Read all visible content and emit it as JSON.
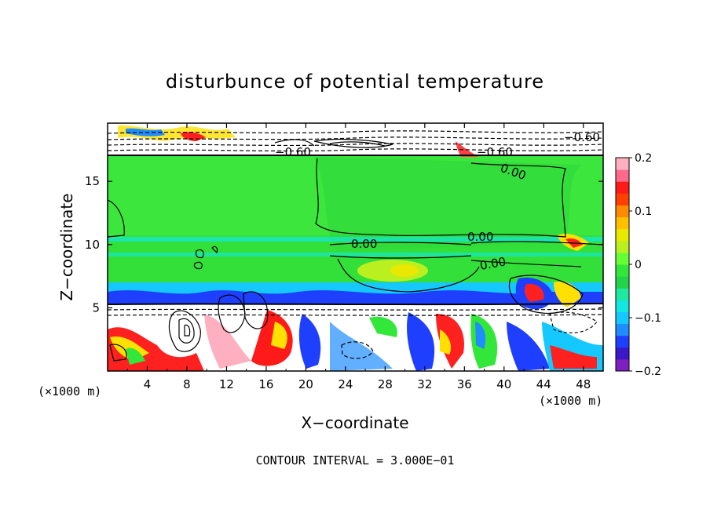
{
  "chart_data": {
    "type": "heatmap",
    "title": "disturbunce of potential temperature",
    "xlabel": "X−coordinate",
    "ylabel": "Z−coordinate",
    "x_unit_left": "(×1000 m)",
    "x_unit_right": "(×1000 m)",
    "xlim": [
      0,
      50
    ],
    "ylim": [
      0,
      19.6
    ],
    "x_ticks": [
      "4",
      "8",
      "12",
      "16",
      "20",
      "24",
      "28",
      "32",
      "36",
      "40",
      "44",
      "48"
    ],
    "y_ticks": [
      "5",
      "10",
      "15"
    ],
    "colorbar": {
      "ticks": [
        "0.2",
        "0.1",
        "0",
        "−0.1",
        "−0.2"
      ],
      "range": [
        -0.2,
        0.2
      ],
      "colors": [
        "#7f1fbf",
        "#3b18c8",
        "#1f3fff",
        "#1f8cff",
        "#15c8ff",
        "#11e8e0",
        "#1fe8a0",
        "#22d44a",
        "#33e63a",
        "#66ff33",
        "#bbf020",
        "#e8e800",
        "#ffc000",
        "#ff8a00",
        "#ff4000",
        "#ff1a1a",
        "#ff6a8a",
        "#ffb0c0"
      ]
    },
    "contour_labels": [
      "0.00",
      "0.00",
      "0.00",
      "0.00",
      "−0.60",
      "−0.60",
      "−0.60"
    ],
    "footer": "CONTOUR INTERVAL = 3.000E−01"
  }
}
